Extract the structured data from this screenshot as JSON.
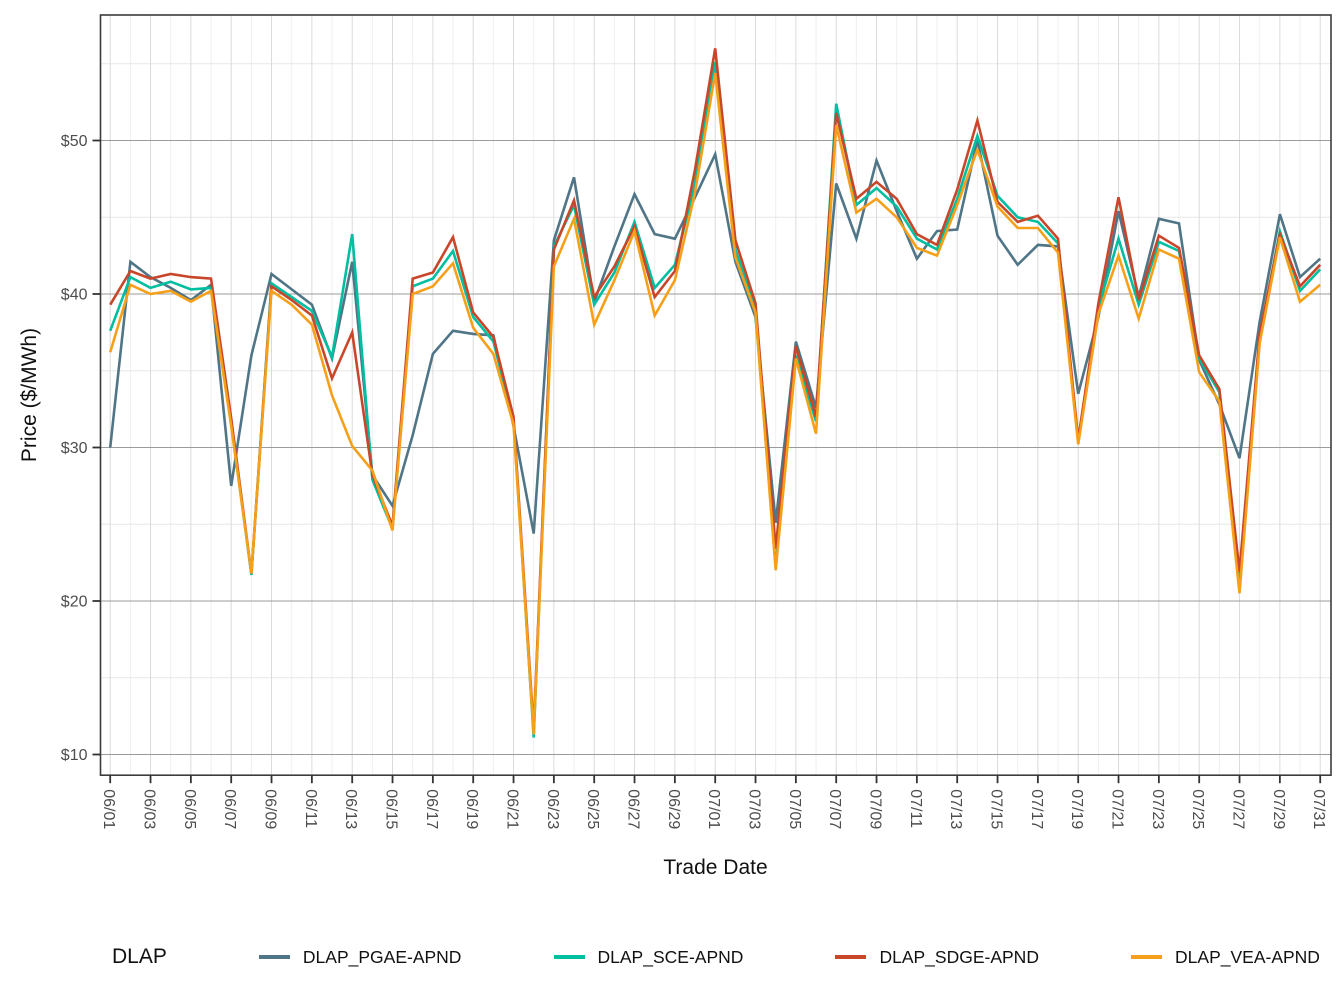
{
  "axes": {
    "x_title": "Trade Date",
    "y_title": "Price ($/MWh)"
  },
  "legend": {
    "title": "DLAP",
    "items": [
      {
        "label": "DLAP_PGAE-APND",
        "color": "#4F7587"
      },
      {
        "label": "DLAP_SCE-APND",
        "color": "#00BFA0"
      },
      {
        "label": "DLAP_SDGE-APND",
        "color": "#C8472B"
      },
      {
        "label": "DLAP_VEA-APND",
        "color": "#F6A01A"
      }
    ]
  },
  "chart_data": {
    "type": "line",
    "x_axis_label": "Trade Date",
    "y_axis_label": "Price ($/MWh)",
    "ylim": [
      8.6,
      58.2
    ],
    "grid": "on",
    "legend_position": "bottom",
    "y_majors": [
      10,
      20,
      30,
      40,
      50
    ],
    "y_minors": [
      15,
      25,
      35,
      45,
      55
    ],
    "y_tick_labels": [
      "$10",
      "$20",
      "$30",
      "$40",
      "$50"
    ],
    "x": [
      "06/01",
      "06/02",
      "06/03",
      "06/04",
      "06/05",
      "06/06",
      "06/07",
      "06/08",
      "06/09",
      "06/10",
      "06/11",
      "06/12",
      "06/13",
      "06/14",
      "06/15",
      "06/16",
      "06/17",
      "06/18",
      "06/19",
      "06/20",
      "06/21",
      "06/22",
      "06/23",
      "06/24",
      "06/25",
      "06/26",
      "06/27",
      "06/28",
      "06/29",
      "06/30",
      "07/01",
      "07/02",
      "07/03",
      "07/04",
      "07/05",
      "07/06",
      "07/07",
      "07/08",
      "07/09",
      "07/10",
      "07/11",
      "07/12",
      "07/13",
      "07/14",
      "07/15",
      "07/16",
      "07/17",
      "07/18",
      "07/19",
      "07/20",
      "07/21",
      "07/22",
      "07/23",
      "07/24",
      "07/25",
      "07/26",
      "07/27",
      "07/28",
      "07/29",
      "07/30",
      "07/31"
    ],
    "x_tick_every": 2,
    "series": [
      {
        "name": "DLAP_PGAE-APND",
        "color": "#4F7587",
        "values": [
          30.0,
          42.1,
          41.1,
          40.4,
          39.6,
          40.6,
          27.5,
          36.0,
          41.3,
          40.3,
          39.3,
          35.8,
          42.1,
          28.2,
          26.2,
          30.8,
          36.1,
          37.6,
          37.4,
          37.3,
          31.4,
          24.4,
          43.5,
          47.6,
          39.5,
          43.1,
          46.5,
          43.9,
          43.6,
          46.3,
          49.1,
          42.1,
          38.5,
          25.1,
          36.9,
          32.6,
          47.2,
          43.6,
          48.7,
          45.4,
          42.3,
          44.1,
          44.2,
          50.0,
          43.8,
          41.9,
          43.2,
          43.1,
          33.5,
          38.5,
          45.4,
          39.8,
          44.9,
          44.6,
          35.7,
          32.8,
          29.3,
          38.2,
          45.2,
          41.1,
          42.3
        ]
      },
      {
        "name": "DLAP_SCE-APND",
        "color": "#00BFA0",
        "values": [
          37.6,
          41.1,
          40.4,
          40.8,
          40.3,
          40.4,
          31.6,
          21.7,
          40.7,
          39.8,
          38.9,
          35.9,
          43.9,
          27.9,
          24.7,
          40.5,
          41.0,
          42.8,
          38.5,
          36.9,
          31.8,
          11.1,
          43.1,
          45.8,
          39.3,
          41.4,
          44.7,
          40.4,
          41.9,
          47.2,
          55.1,
          42.9,
          39.0,
          22.2,
          36.0,
          31.7,
          52.4,
          45.8,
          46.9,
          45.7,
          43.6,
          42.9,
          46.2,
          50.3,
          46.4,
          45.0,
          44.7,
          43.3,
          30.4,
          39.1,
          43.6,
          39.3,
          43.4,
          42.8,
          35.8,
          33.6,
          21.2,
          37.2,
          44.1,
          40.2,
          41.6
        ]
      },
      {
        "name": "DLAP_SDGE-APND",
        "color": "#C8472B",
        "values": [
          39.3,
          41.5,
          41.0,
          41.3,
          41.1,
          41.0,
          31.9,
          21.8,
          40.5,
          39.6,
          38.6,
          34.5,
          37.5,
          28.2,
          24.9,
          41.0,
          41.4,
          43.7,
          38.8,
          37.2,
          32.0,
          11.6,
          42.9,
          46.1,
          39.8,
          41.8,
          44.4,
          39.8,
          41.5,
          48.1,
          56.0,
          43.5,
          39.4,
          23.4,
          36.6,
          32.0,
          51.8,
          46.2,
          47.3,
          46.2,
          43.9,
          43.2,
          46.8,
          51.3,
          46.0,
          44.7,
          45.1,
          43.6,
          30.5,
          39.4,
          46.3,
          39.6,
          43.8,
          43.0,
          36.0,
          33.8,
          21.9,
          37.4,
          43.9,
          40.5,
          41.9
        ]
      },
      {
        "name": "DLAP_VEA-APND",
        "color": "#F6A01A",
        "values": [
          36.2,
          40.6,
          40.0,
          40.2,
          39.5,
          40.2,
          31.4,
          21.8,
          40.2,
          39.3,
          38.0,
          33.4,
          30.1,
          28.5,
          24.6,
          40.0,
          40.5,
          42.0,
          37.8,
          36.1,
          31.5,
          11.3,
          41.8,
          44.9,
          38.0,
          40.9,
          44.1,
          38.6,
          40.9,
          46.6,
          54.4,
          42.4,
          38.8,
          22.0,
          35.8,
          30.9,
          51.0,
          45.3,
          46.2,
          45.0,
          43.0,
          42.5,
          45.8,
          49.4,
          45.7,
          44.3,
          44.3,
          42.7,
          30.2,
          38.7,
          42.5,
          38.4,
          42.9,
          42.3,
          34.9,
          33.0,
          20.5,
          36.8,
          43.7,
          39.5,
          40.6
        ]
      }
    ]
  }
}
